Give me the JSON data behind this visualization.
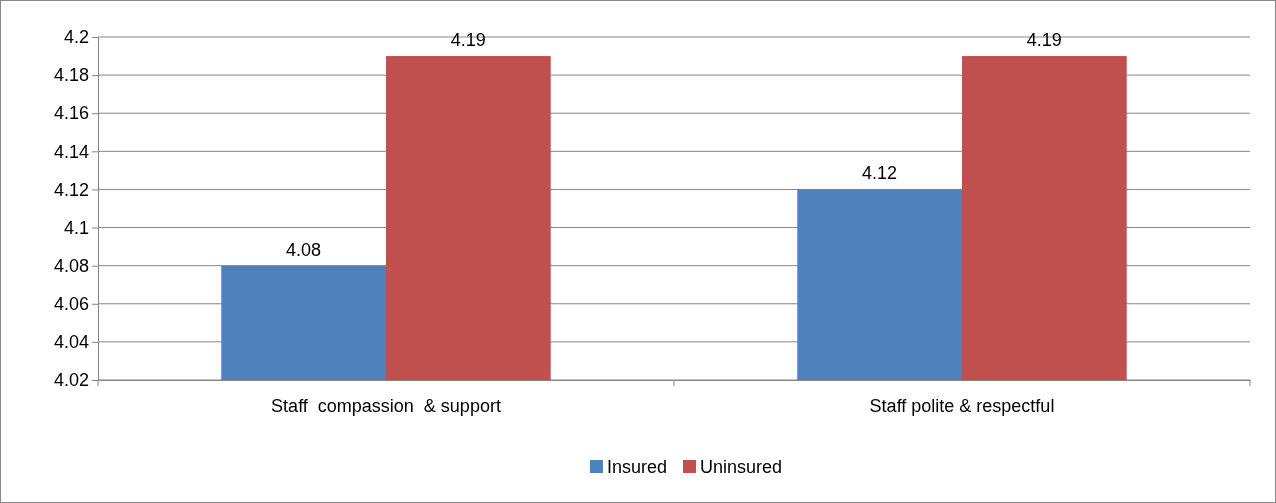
{
  "chart_data": {
    "type": "bar",
    "categories": [
      "Staff  compassion  & support",
      "Staff polite & respectful"
    ],
    "series": [
      {
        "name": "Insured",
        "color": "#4f81bd",
        "values": [
          4.08,
          4.12
        ]
      },
      {
        "name": "Uninsured",
        "color": "#c0504d",
        "values": [
          4.19,
          4.19
        ]
      }
    ],
    "ylim": [
      4.02,
      4.2
    ],
    "yticks": [
      4.02,
      4.04,
      4.06,
      4.08,
      4.1,
      4.12,
      4.14,
      4.16,
      4.18,
      4.2
    ],
    "grid": "y",
    "legend": "bottom",
    "data_labels": true
  }
}
